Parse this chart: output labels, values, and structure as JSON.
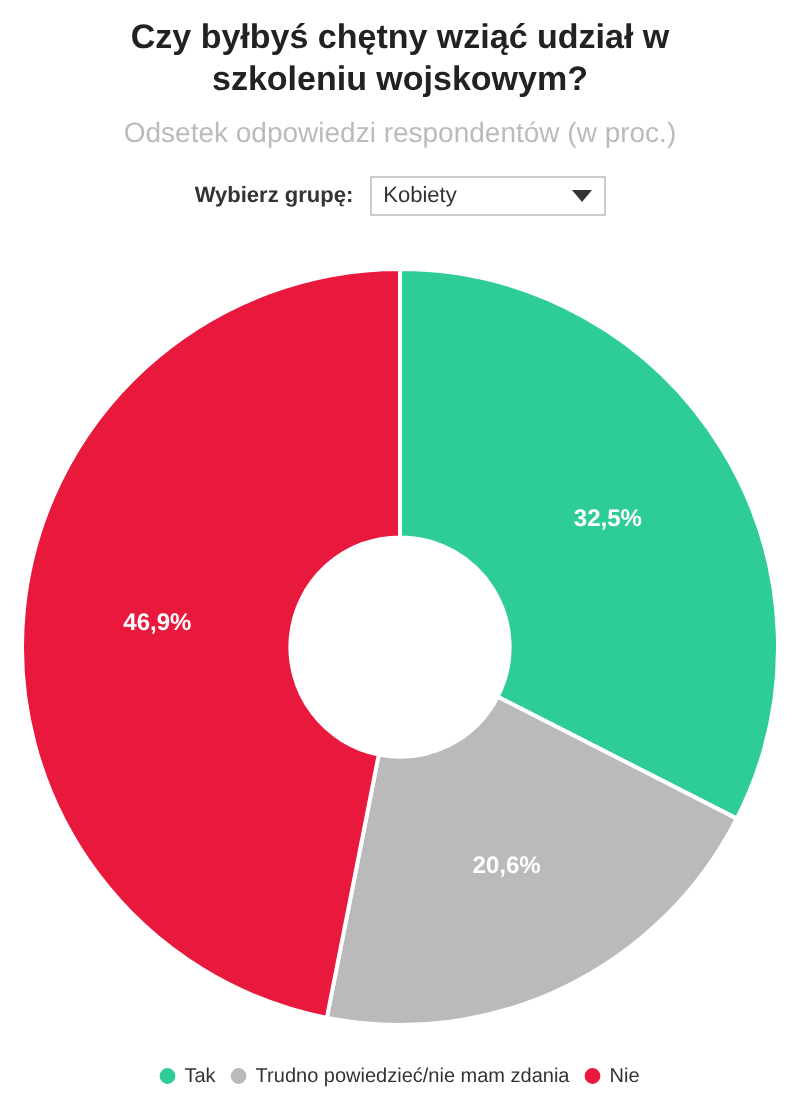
{
  "chart_data": {
    "type": "donut",
    "title": "Czy byłbyś chętny wziąć udział w szkoleniu wojskowym?",
    "subtitle": "Odsetek odpowiedzi respondentów (w proc.)",
    "annotations": [
      "Wybierz grupę:",
      "Kobiety"
    ],
    "categories": [
      "Tak",
      "Trudno powiedzieć/nie mam zdania",
      "Nie"
    ],
    "values": [
      32.5,
      20.6,
      46.9
    ],
    "value_labels": [
      "32,5%",
      "20,6%",
      "46,9%"
    ],
    "colors": [
      "#2ecc96",
      "#bababa",
      "#e8193c"
    ],
    "legend": "bottom"
  }
}
